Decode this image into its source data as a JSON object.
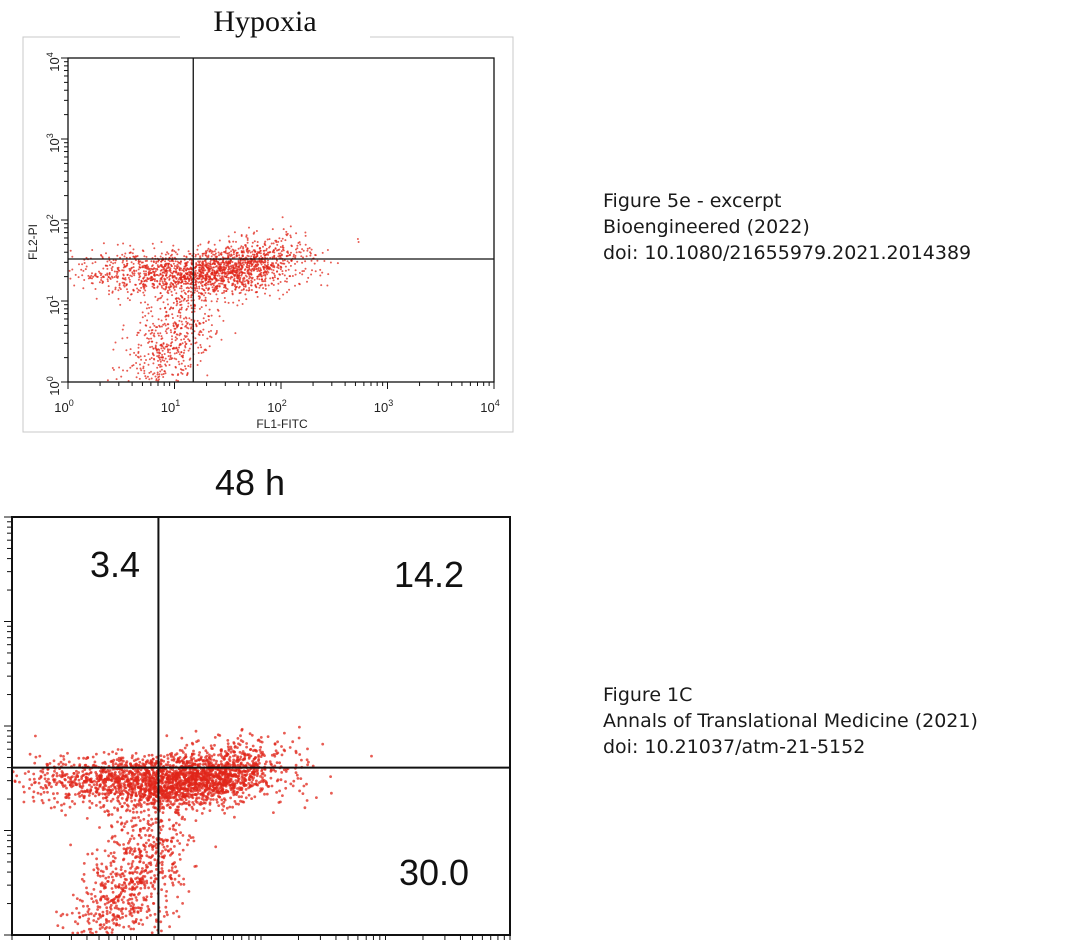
{
  "captions": [
    {
      "lines": [
        "Figure 5e - excerpt",
        "Bioengineered (2022)",
        "doi: 10.1080/21655979.2021.2014389"
      ]
    },
    {
      "lines": [
        "Figure 1C",
        "Annals of Translational Medicine (2021)",
        "doi: 10.21037/atm-21-5152"
      ]
    }
  ],
  "colors": {
    "dots": "#e0261a",
    "lines": "#111111"
  },
  "chart_data": [
    {
      "type": "scatter",
      "title": "Hypoxia",
      "xlabel": "FL1-FITC",
      "ylabel": "FL2-PI",
      "x_scale": "log",
      "y_scale": "log",
      "xlim": [
        1,
        10000
      ],
      "ylim": [
        1,
        10000
      ],
      "tick_labels": {
        "base": "10",
        "exponents": [
          "0",
          "1",
          "2",
          "3",
          "4"
        ]
      },
      "gate": {
        "x": 15,
        "y": 33
      },
      "populations": [
        {
          "center_x": 12,
          "center_y": 22,
          "spread_decades_x": 0.5,
          "spread_decades_y": 0.13
        },
        {
          "center_x": 45,
          "center_y": 28,
          "spread_decades_x": 0.3,
          "spread_decades_y": 0.15
        },
        {
          "center_x": 9,
          "center_y": 3,
          "spread_decades_x": 0.25,
          "spread_decades_y": 0.35
        }
      ]
    },
    {
      "type": "scatter",
      "title": "48 h",
      "x_scale": "log",
      "y_scale": "log",
      "xlim": [
        1,
        10000
      ],
      "ylim": [
        1,
        10000
      ],
      "quadrant_values": {
        "upper_left": "3.4",
        "upper_right": "14.2",
        "lower_right": "30.0"
      },
      "gate": {
        "x": 15,
        "y": 40
      },
      "populations": [
        {
          "center_x": 12,
          "center_y": 30,
          "spread_decades_x": 0.45,
          "spread_decades_y": 0.12
        },
        {
          "center_x": 40,
          "center_y": 33,
          "spread_decades_x": 0.3,
          "spread_decades_y": 0.14
        },
        {
          "center_x": 9,
          "center_y": 3,
          "spread_decades_x": 0.25,
          "spread_decades_y": 0.35
        }
      ]
    }
  ]
}
